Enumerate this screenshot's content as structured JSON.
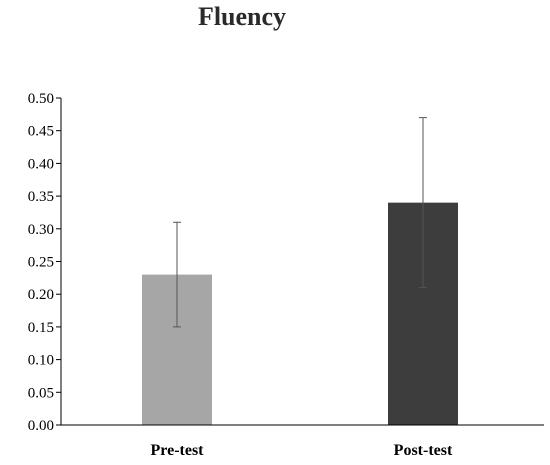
{
  "chart_data": {
    "type": "bar",
    "title": "Fluency",
    "xlabel": "",
    "ylabel": "",
    "ylim": [
      0,
      0.5
    ],
    "yticks": [
      "0.00",
      "0.05",
      "0.10",
      "0.15",
      "0.20",
      "0.25",
      "0.30",
      "0.35",
      "0.40",
      "0.45",
      "0.50"
    ],
    "categories": [
      "Pre-test",
      "Post-test"
    ],
    "values": [
      0.23,
      0.34
    ],
    "error_low": [
      0.15,
      0.21
    ],
    "error_high": [
      0.31,
      0.47
    ],
    "colors": [
      "#a6a6a6",
      "#3d3d3d"
    ],
    "error_bar_color": "#555555",
    "grid": false,
    "legend": "none"
  }
}
